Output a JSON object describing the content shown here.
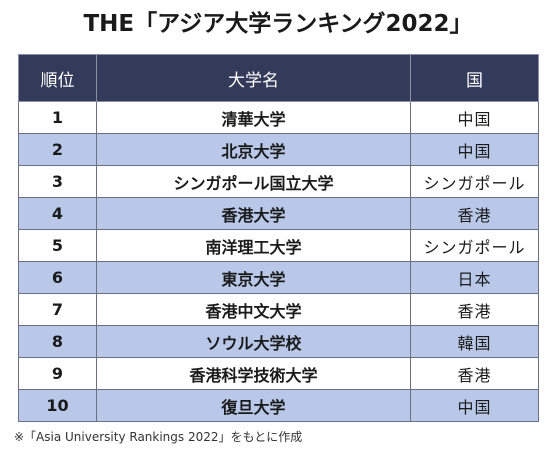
{
  "title": "THE「アジア大学ランキング2022」",
  "table": {
    "headers": {
      "rank": "順位",
      "name": "大学名",
      "country": "国"
    },
    "rows": [
      {
        "rank": "1",
        "name": "清華大学",
        "country": "中国"
      },
      {
        "rank": "2",
        "name": "北京大学",
        "country": "中国"
      },
      {
        "rank": "3",
        "name": "シンガポール国立大学",
        "country": "シンガポール"
      },
      {
        "rank": "4",
        "name": "香港大学",
        "country": "香港"
      },
      {
        "rank": "5",
        "name": "南洋理工大学",
        "country": "シンガポール"
      },
      {
        "rank": "6",
        "name": "東京大学",
        "country": "日本"
      },
      {
        "rank": "7",
        "name": "香港中文大学",
        "country": "香港"
      },
      {
        "rank": "8",
        "name": "ソウル大学校",
        "country": "韓国"
      },
      {
        "rank": "9",
        "name": "香港科学技術大学",
        "country": "香港"
      },
      {
        "rank": "10",
        "name": "復旦大学",
        "country": "中国"
      }
    ]
  },
  "note": "※「Asia University Rankings 2022」をもとに作成",
  "colors": {
    "header_bg": "#333a5a",
    "stripe_bg": "#b9c8e8"
  }
}
